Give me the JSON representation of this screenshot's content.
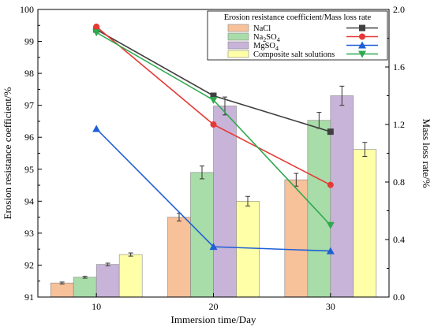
{
  "chart_data": {
    "type": "bar",
    "categories": [
      "10",
      "20",
      "30"
    ],
    "xlabel": "Immersion time/Day",
    "ylabel": "Erosion resistance coefficient/%",
    "y2label": "Mass loss rate/%",
    "ylim": [
      91,
      100
    ],
    "yticks": [
      "91",
      "92",
      "93",
      "94",
      "95",
      "96",
      "97",
      "98",
      "99",
      "100"
    ],
    "y2lim": [
      0,
      2
    ],
    "y2ticks": [
      "0.0",
      "0.4",
      "0.8",
      "1.2",
      "1.6",
      "2.0"
    ],
    "grid": false,
    "legend_title": "Erosion resistance coefficient/Mass loss rate",
    "legend_position": "top-right",
    "series": [
      {
        "name": "NaCl",
        "name_sub": "",
        "name_tail": "",
        "color": "#f7c19a",
        "line_color": "#404040",
        "marker": "square",
        "values": [
          91.44,
          93.5,
          94.67
        ],
        "errors": [
          0.03,
          0.12,
          0.2
        ],
        "line_values": [
          1.86,
          1.4,
          1.15
        ]
      },
      {
        "name": "Na",
        "name_sub": "2",
        "name_tail": "SO",
        "name_sub2": "4",
        "color": "#a8dca8",
        "line_color": "#e53935",
        "marker": "circle",
        "values": [
          91.62,
          94.9,
          96.53
        ],
        "errors": [
          0.03,
          0.2,
          0.25
        ],
        "line_values": [
          1.88,
          1.2,
          0.78
        ]
      },
      {
        "name": "Mg",
        "name_sub": "",
        "name_tail": "SO",
        "name_sub2": "4",
        "color": "#c8b4d8",
        "line_color": "#1f5fd6",
        "marker": "triangle-up",
        "values": [
          92.02,
          96.98,
          97.3
        ],
        "errors": [
          0.04,
          0.28,
          0.3
        ],
        "line_values": [
          1.17,
          0.35,
          0.32
        ]
      },
      {
        "name": "Composite salt solutions",
        "name_sub": "",
        "name_tail": "",
        "color": "#ffffa8",
        "line_color": "#2fa84f",
        "marker": "triangle-down",
        "values": [
          92.33,
          94.0,
          95.62
        ],
        "errors": [
          0.05,
          0.15,
          0.22
        ],
        "line_values": [
          1.84,
          1.37,
          0.5
        ]
      }
    ]
  }
}
